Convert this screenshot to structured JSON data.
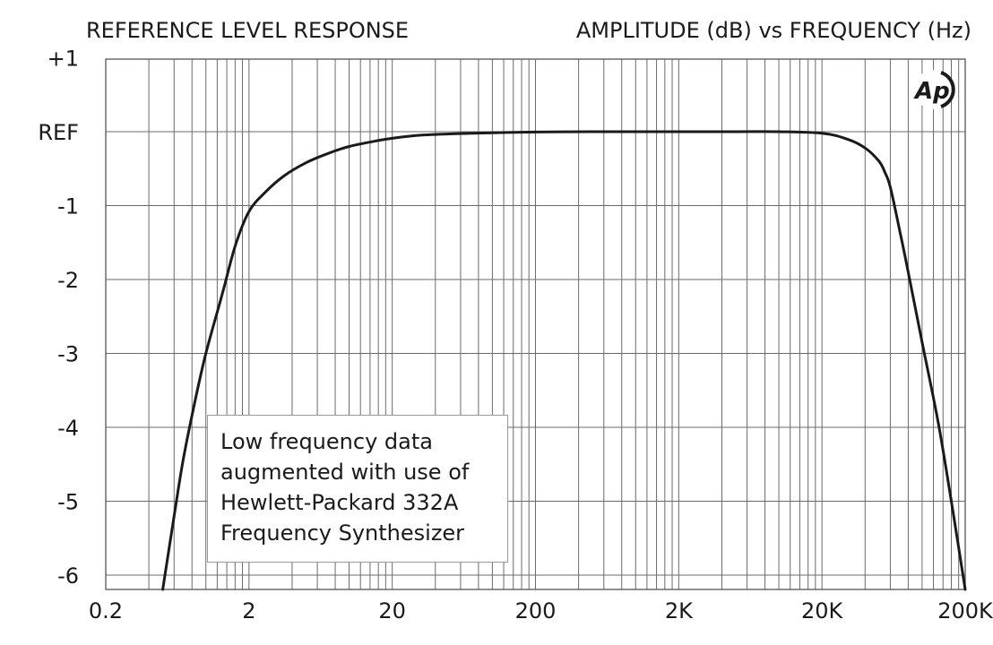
{
  "chart_data": {
    "type": "line",
    "title": "REFERENCE LEVEL RESPONSE",
    "subtitle": "AMPLITUDE (dB) vs FREQUENCY (Hz)",
    "xlabel": "",
    "ylabel": "",
    "x_scale": "log",
    "xlim": [
      0.2,
      200000
    ],
    "ylim": [
      -6.2,
      1
    ],
    "grid": true,
    "x_ticks": [
      {
        "value": 0.2,
        "label": "0.2"
      },
      {
        "value": 2,
        "label": "2"
      },
      {
        "value": 20,
        "label": "20"
      },
      {
        "value": 200,
        "label": "200"
      },
      {
        "value": 2000,
        "label": "2K"
      },
      {
        "value": 20000,
        "label": "20K"
      },
      {
        "value": 200000,
        "label": "200K"
      }
    ],
    "y_ticks": [
      {
        "value": 1,
        "label": "+1"
      },
      {
        "value": 0,
        "label": "REF"
      },
      {
        "value": -1,
        "label": "-1"
      },
      {
        "value": -2,
        "label": "-2"
      },
      {
        "value": -3,
        "label": "-3"
      },
      {
        "value": -4,
        "label": "-4"
      },
      {
        "value": -5,
        "label": "-5"
      },
      {
        "value": -6,
        "label": "-6"
      }
    ],
    "series": [
      {
        "x": [
          0.5,
          0.6,
          0.7,
          0.85,
          1.0,
          1.3,
          1.6,
          2.0,
          2.6,
          3.5,
          5,
          7,
          10,
          15,
          20,
          30,
          50,
          100,
          200,
          500,
          1000,
          2000,
          5000,
          10000,
          20000,
          30000,
          40000,
          50000,
          55000,
          60000,
          70000,
          80000,
          100000,
          130000,
          160000,
          200000
        ],
        "y": [
          -6.2,
          -5.2,
          -4.4,
          -3.6,
          -3.0,
          -2.2,
          -1.55,
          -1.08,
          -0.82,
          -0.6,
          -0.42,
          -0.3,
          -0.2,
          -0.13,
          -0.09,
          -0.05,
          -0.03,
          -0.015,
          -0.005,
          0.0,
          0.0,
          0.0,
          0.0,
          0.0,
          -0.02,
          -0.1,
          -0.22,
          -0.4,
          -0.55,
          -0.75,
          -1.35,
          -1.9,
          -2.85,
          -3.95,
          -5.0,
          -6.2
        ]
      }
    ],
    "annotation": [
      "Low frequency data",
      "augmented with use of",
      "Hewlett-Packard 332A",
      "Frequency Synthesizer"
    ],
    "logo_text": "Ap"
  }
}
